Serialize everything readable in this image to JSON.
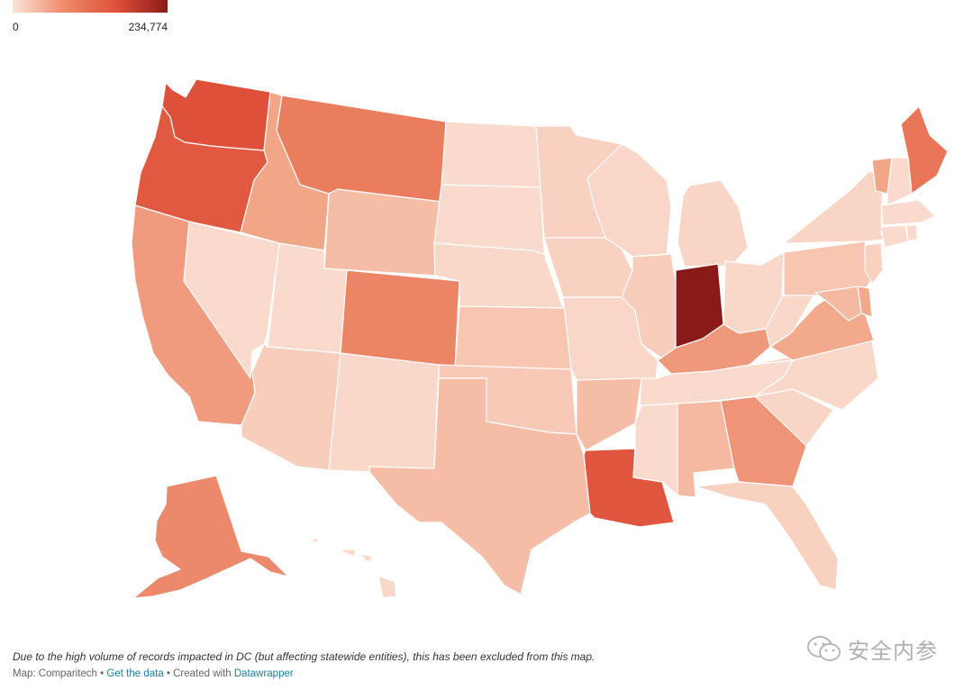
{
  "legend": {
    "min_label": "0",
    "max_label": "234,774",
    "color_low": "#fbe4da",
    "color_high": "#8a1a17"
  },
  "map_data": {
    "type": "choropleth",
    "region": "United States",
    "excluded": [
      "DC"
    ],
    "levels": {
      "WA": 0.8,
      "OR": 0.76,
      "CA": 0.4,
      "NV": 0.05,
      "ID": 0.33,
      "MT": 0.6,
      "WY": 0.2,
      "UT": 0.05,
      "AZ": 0.12,
      "CO": 0.55,
      "NM": 0.06,
      "ND": 0.05,
      "SD": 0.05,
      "NE": 0.06,
      "KS": 0.16,
      "OK": 0.14,
      "TX": 0.2,
      "MN": 0.1,
      "IA": 0.1,
      "MO": 0.07,
      "AR": 0.2,
      "LA": 0.78,
      "WI": 0.07,
      "IL": 0.12,
      "MI": 0.08,
      "IN": 1.0,
      "OH": 0.06,
      "KY": 0.42,
      "TN": 0.05,
      "MS": 0.05,
      "AL": 0.22,
      "GA": 0.45,
      "FL": 0.1,
      "SC": 0.08,
      "NC": 0.06,
      "VA": 0.3,
      "WV": 0.06,
      "PA": 0.16,
      "NY": 0.08,
      "ME": 0.63,
      "VT": 0.33,
      "NH": 0.05,
      "MA": 0.05,
      "CT": 0.05,
      "RI": 0.05,
      "NJ": 0.1,
      "DE": 0.3,
      "MD": 0.22,
      "AK": 0.52,
      "HI": 0.06
    }
  },
  "footer": {
    "note": "Due to the high volume of records impacted in DC (but affecting statewide entities), this has been excluded from this map.",
    "source_prefix": "Map: Comparitech",
    "sep1": " • ",
    "get_data": "Get the data",
    "sep2": " • Created with ",
    "datawrapper": "Datawrapper"
  },
  "watermark": {
    "text": "安全内参"
  }
}
